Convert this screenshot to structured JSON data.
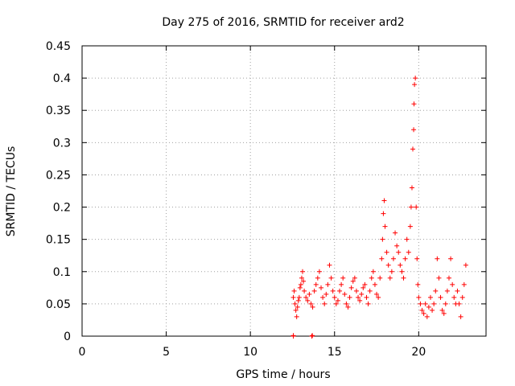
{
  "chart_data": {
    "type": "scatter",
    "title": "Day 275 of 2016, SRMTID for receiver ard2",
    "xlabel": "GPS time / hours",
    "ylabel": "SRMTID / TECUs",
    "xlim": [
      0,
      24
    ],
    "ylim": [
      0,
      0.45
    ],
    "xticks": [
      0,
      5,
      10,
      15,
      20
    ],
    "xtick_labels": [
      "0",
      "5",
      "10",
      "15",
      "20"
    ],
    "yticks": [
      0,
      0.05,
      0.1,
      0.15,
      0.2,
      0.25,
      0.3,
      0.35,
      0.4,
      0.45
    ],
    "ytick_labels": [
      "0",
      "0.05",
      "0.1",
      "0.15",
      "0.2",
      "0.25",
      "0.3",
      "0.35",
      "0.4",
      "0.45"
    ],
    "grid": true,
    "marker": "+",
    "colors": {
      "series": "#ff0000",
      "grid": "#a0a0a0",
      "axis": "#000000"
    },
    "series": [
      {
        "name": "SRMTID",
        "x": [
          12.55,
          12.6,
          12.65,
          12.7,
          12.75,
          12.8,
          12.85,
          12.9,
          12.95,
          13.0,
          13.05,
          13.1,
          13.15,
          13.2,
          13.3,
          13.4,
          13.5,
          13.6,
          13.7,
          13.8,
          13.9,
          14.0,
          14.1,
          14.2,
          14.3,
          14.4,
          14.5,
          14.6,
          14.7,
          14.8,
          14.9,
          15.0,
          15.1,
          15.2,
          15.3,
          15.4,
          15.5,
          15.6,
          15.7,
          15.8,
          15.9,
          16.0,
          16.1,
          16.2,
          16.3,
          16.4,
          16.5,
          16.6,
          16.7,
          16.8,
          16.9,
          17.0,
          17.1,
          17.2,
          17.3,
          17.4,
          17.5,
          17.6,
          17.7,
          17.8,
          17.85,
          17.9,
          17.95,
          18.0,
          18.1,
          18.2,
          18.3,
          18.4,
          18.5,
          18.6,
          18.7,
          18.8,
          18.9,
          19.0,
          19.1,
          19.2,
          19.3,
          19.4,
          19.5,
          19.55,
          19.6,
          19.65,
          19.7,
          19.72,
          19.75,
          19.8,
          19.85,
          19.9,
          19.95,
          20.0,
          20.1,
          20.2,
          20.3,
          20.4,
          20.5,
          20.6,
          20.7,
          20.8,
          20.9,
          21.0,
          21.1,
          21.2,
          21.3,
          21.4,
          21.5,
          21.6,
          21.7,
          21.8,
          21.9,
          22.0,
          22.1,
          22.2,
          22.3,
          22.4,
          22.5,
          22.6,
          22.7,
          22.8,
          12.55,
          12.55,
          13.65,
          13.68
        ],
        "y": [
          0.06,
          0.07,
          0.05,
          0.04,
          0.03,
          0.045,
          0.055,
          0.06,
          0.075,
          0.08,
          0.09,
          0.1,
          0.085,
          0.07,
          0.06,
          0.055,
          0.065,
          0.05,
          0.045,
          0.07,
          0.08,
          0.09,
          0.1,
          0.075,
          0.06,
          0.05,
          0.065,
          0.08,
          0.11,
          0.09,
          0.07,
          0.06,
          0.05,
          0.055,
          0.07,
          0.08,
          0.09,
          0.065,
          0.05,
          0.045,
          0.06,
          0.075,
          0.085,
          0.09,
          0.07,
          0.06,
          0.055,
          0.065,
          0.075,
          0.08,
          0.06,
          0.05,
          0.07,
          0.09,
          0.1,
          0.08,
          0.065,
          0.06,
          0.09,
          0.12,
          0.15,
          0.19,
          0.21,
          0.17,
          0.13,
          0.11,
          0.09,
          0.1,
          0.12,
          0.16,
          0.14,
          0.13,
          0.11,
          0.1,
          0.09,
          0.12,
          0.15,
          0.13,
          0.17,
          0.2,
          0.23,
          0.29,
          0.32,
          0.36,
          0.39,
          0.4,
          0.2,
          0.12,
          0.08,
          0.06,
          0.05,
          0.04,
          0.035,
          0.05,
          0.03,
          0.045,
          0.06,
          0.04,
          0.05,
          0.07,
          0.12,
          0.09,
          0.06,
          0.04,
          0.035,
          0.05,
          0.07,
          0.09,
          0.12,
          0.08,
          0.06,
          0.05,
          0.07,
          0.05,
          0.03,
          0.06,
          0.08,
          0.11,
          0.001,
          0.0,
          0.0,
          0.001
        ]
      }
    ]
  }
}
